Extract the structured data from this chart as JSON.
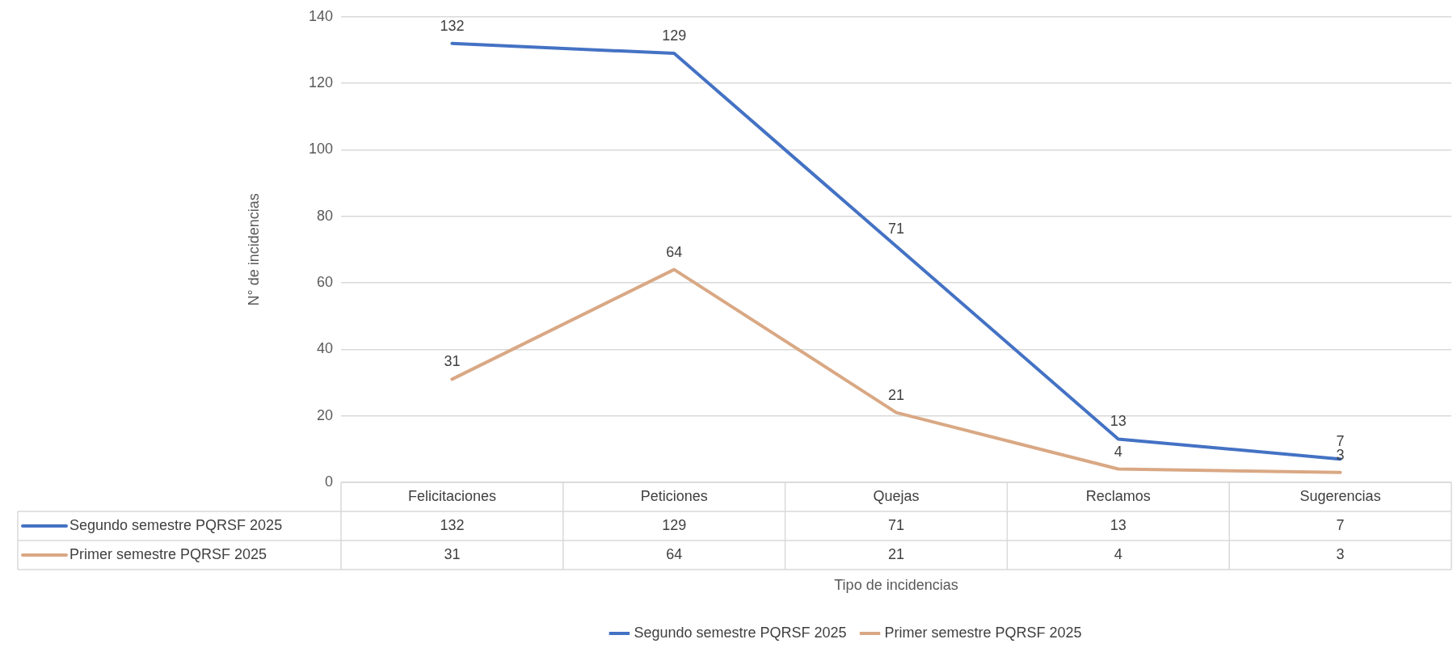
{
  "chart_data": {
    "type": "line",
    "xlabel": "Tipo de incidencias",
    "ylabel": "N° de incidencias",
    "categories": [
      "Felicitaciones",
      "Peticiones",
      "Quejas",
      "Reclamos",
      "Sugerencias"
    ],
    "series": [
      {
        "name": "Segundo semestre PQRSF 2025",
        "color": "#4472c4",
        "values": [
          132,
          129,
          71,
          13,
          7
        ]
      },
      {
        "name": "Primer semestre PQRSF 2025",
        "color": "#d9a884",
        "values": [
          31,
          64,
          21,
          4,
          3
        ]
      }
    ],
    "ylim": [
      0,
      140
    ],
    "yticks": [
      0,
      20,
      40,
      60,
      80,
      100,
      120,
      140
    ],
    "annotations": [
      "132",
      "129",
      "71",
      "13",
      "7",
      "31",
      "64",
      "21",
      "4",
      "3"
    ],
    "grid": "y",
    "legend": "bottom",
    "marker": "none",
    "line_style": "solid",
    "data_labels": true
  }
}
